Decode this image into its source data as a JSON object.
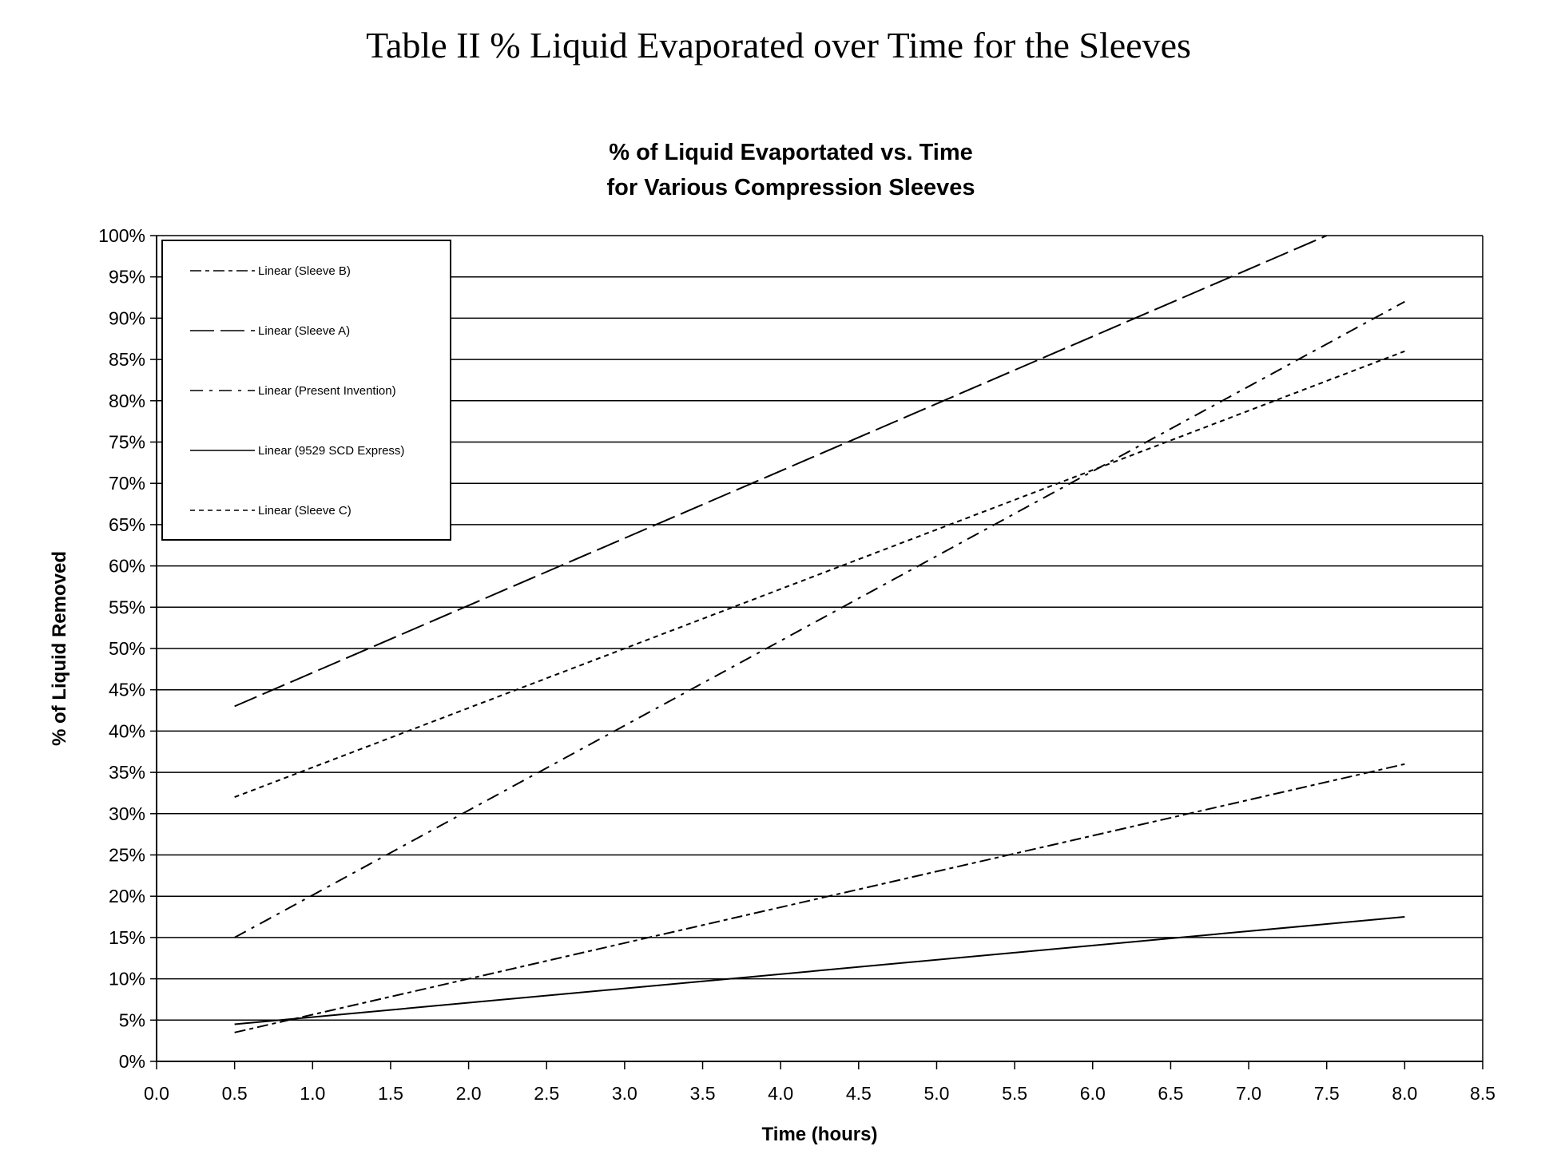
{
  "page_title": "Table II % Liquid Evaporated over Time for the Sleeves",
  "chart_data": {
    "type": "line",
    "title_lines": [
      "% of Liquid Evaportated vs. Time",
      "for Various Compression Sleeves"
    ],
    "xlabel": "Time (hours)",
    "ylabel": "% of Liquid Removed",
    "xlim": [
      0,
      8.5
    ],
    "ylim": [
      0,
      100
    ],
    "xticks": [
      "0.0",
      "0.5",
      "1.0",
      "1.5",
      "2.0",
      "2.5",
      "3.0",
      "3.5",
      "4.0",
      "4.5",
      "5.0",
      "5.5",
      "6.0",
      "6.5",
      "7.0",
      "7.5",
      "8.0",
      "8.5"
    ],
    "yticks": [
      "0%",
      "5%",
      "10%",
      "15%",
      "20%",
      "25%",
      "30%",
      "35%",
      "40%",
      "45%",
      "50%",
      "55%",
      "60%",
      "65%",
      "70%",
      "75%",
      "80%",
      "85%",
      "90%",
      "95%",
      "100%"
    ],
    "grid": true,
    "legend_position": "top-left",
    "series": [
      {
        "name": "Linear (Sleeve B)",
        "dash": "14 5 5 5",
        "x": [
          0.5,
          8.0
        ],
        "y": [
          3.5,
          36
        ]
      },
      {
        "name": "Linear (Sleeve A)",
        "dash": "30 8",
        "x": [
          0.5,
          7.5
        ],
        "y": [
          43,
          100
        ]
      },
      {
        "name": "Linear (Present Invention)",
        "dash": "16 8 4 8",
        "x": [
          0.5,
          8.0
        ],
        "y": [
          15,
          92
        ]
      },
      {
        "name": "Linear (9529 SCD Express)",
        "dash": "",
        "x": [
          0.5,
          8.0
        ],
        "y": [
          4.5,
          17.5
        ]
      },
      {
        "name": "Linear (Sleeve C)",
        "dash": "6 5",
        "x": [
          0.5,
          8.0
        ],
        "y": [
          32,
          86
        ]
      }
    ]
  }
}
